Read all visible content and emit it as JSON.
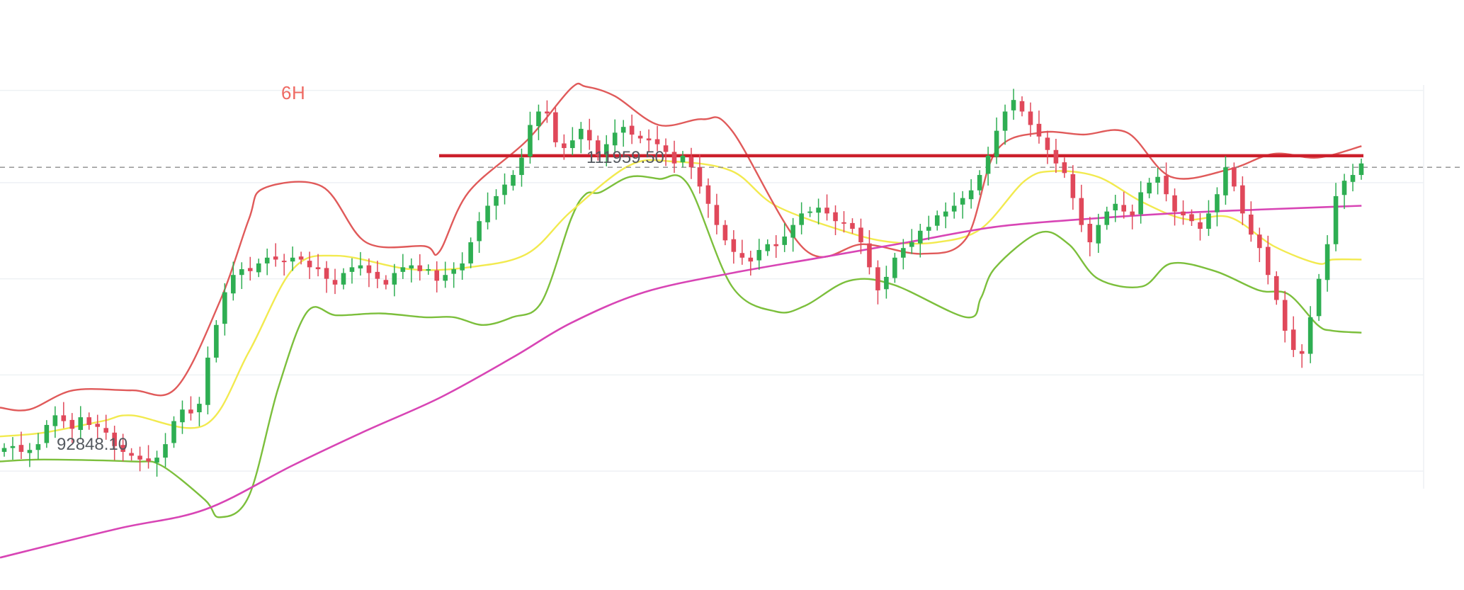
{
  "header": {
    "timeframe": "6H"
  },
  "annotations": {
    "high_label": "111959.50",
    "low_label": "92848.10"
  },
  "colors": {
    "up": "#2eae52",
    "down": "#e0485a",
    "bb_upper": "#e05a5a",
    "bb_middle": "#f2ea4f",
    "bb_lower": "#7cbf3c",
    "ma_long": "#d845b5",
    "resistance": "#cc1f2b",
    "current_price_line": "#8c8c8c",
    "timeframe_label": "#ee6a63"
  },
  "chart_data": {
    "type": "candlestick",
    "timeframe": "6H",
    "ylim": [
      87000,
      117500
    ],
    "grid": true,
    "legend": "none",
    "resistance_level": 109400,
    "current_price_line": 108800,
    "annotated_high": 111959.5,
    "annotated_low": 92848.1,
    "series": [
      {
        "role": "close",
        "values": [
          94200,
          94300,
          94000,
          94100,
          94400,
          95400,
          95900,
          95600,
          95200,
          95800,
          95400,
          95300,
          95000,
          94300,
          94000,
          93800,
          93600,
          93500,
          93700,
          94400,
          95600,
          96200,
          96000,
          96500,
          98900,
          100600,
          102300,
          103200,
          103500,
          103400,
          103800,
          104100,
          104000,
          103900,
          104100,
          104000,
          103600,
          103500,
          103000,
          102700,
          103300,
          103600,
          103700,
          103300,
          103000,
          102700,
          103300,
          103600,
          103700,
          103400,
          103500,
          102900,
          103200,
          103500,
          103800,
          104900,
          106000,
          106800,
          107300,
          107900,
          108400,
          109300,
          111000,
          111700,
          111600,
          110100,
          109800,
          110200,
          110800,
          110200,
          109400,
          110000,
          110600,
          110900,
          110500,
          110300,
          110200,
          110000,
          109600,
          109000,
          109400,
          108800,
          107800,
          106900,
          105800,
          105000,
          104400,
          104100,
          103900,
          104500,
          104800,
          104700,
          105200,
          105800,
          106400,
          106500,
          106700,
          106400,
          106000,
          105900,
          105600,
          104900,
          103600,
          102400,
          103100,
          104100,
          104600,
          104900,
          105500,
          105700,
          106300,
          106500,
          106800,
          107200,
          107600,
          108400,
          109400,
          110700,
          111700,
          112300,
          111700,
          111000,
          110400,
          109700,
          109000,
          108500,
          107200,
          105800,
          104900,
          105800,
          106500,
          106900,
          106500,
          106300,
          107500,
          108000,
          108300,
          107400,
          106500,
          106300,
          106000,
          105600,
          106400,
          107400,
          108800,
          107800,
          106400,
          105300,
          104600,
          103200,
          101900,
          100300,
          99300,
          99100,
          101000,
          103000,
          104800,
          107300,
          108100,
          108400,
          109000
        ]
      },
      {
        "role": "bb_upper",
        "x": [
          0,
          0.02,
          0.05,
          0.09,
          0.12,
          0.15,
          0.17,
          0.18,
          0.22,
          0.25,
          0.29,
          0.3,
          0.32,
          0.36,
          0.39,
          0.4,
          0.42,
          0.45,
          0.48,
          0.5,
          0.55,
          0.59,
          0.63,
          0.66,
          0.68,
          0.71,
          0.74,
          0.77,
          0.8,
          0.84,
          0.87,
          0.9,
          0.93
        ],
        "values": [
          96300,
          96200,
          97200,
          97200,
          97300,
          101800,
          106100,
          107700,
          107800,
          104900,
          104700,
          104400,
          107500,
          110200,
          112900,
          113000,
          112500,
          111000,
          111300,
          110700,
          104500,
          104800,
          104300,
          105100,
          109600,
          110600,
          110500,
          110600,
          108300,
          108700,
          109500,
          109300,
          109900
        ]
      },
      {
        "role": "bb_middle",
        "x": [
          0,
          0.03,
          0.07,
          0.09,
          0.14,
          0.17,
          0.2,
          0.23,
          0.28,
          0.32,
          0.36,
          0.39,
          0.43,
          0.46,
          0.5,
          0.53,
          0.58,
          0.61,
          0.64,
          0.67,
          0.7,
          0.72,
          0.75,
          0.78,
          0.81,
          0.84,
          0.87,
          0.9,
          0.91,
          0.93
        ],
        "values": [
          94800,
          95000,
          95600,
          95900,
          95400,
          99200,
          103500,
          104200,
          103500,
          103600,
          104300,
          106500,
          108900,
          109100,
          108600,
          106800,
          105400,
          104900,
          104900,
          105600,
          108100,
          108600,
          108300,
          107000,
          106100,
          106200,
          104700,
          103800,
          104000,
          104000
        ]
      },
      {
        "role": "bb_lower",
        "x": [
          0,
          0.03,
          0.09,
          0.11,
          0.14,
          0.15,
          0.17,
          0.19,
          0.21,
          0.23,
          0.26,
          0.29,
          0.31,
          0.33,
          0.35,
          0.37,
          0.39,
          0.4,
          0.41,
          0.43,
          0.45,
          0.47,
          0.5,
          0.53,
          0.55,
          0.58,
          0.61,
          0.66,
          0.67,
          0.68,
          0.71,
          0.73,
          0.75,
          0.78,
          0.8,
          0.83,
          0.86,
          0.88,
          0.9,
          0.91,
          0.93
        ],
        "values": [
          93500,
          93600,
          93500,
          93300,
          91500,
          90600,
          91700,
          97300,
          101300,
          101100,
          101200,
          101000,
          101000,
          100600,
          101000,
          101800,
          106100,
          107400,
          107500,
          108300,
          108200,
          107900,
          102600,
          101300,
          101600,
          102900,
          102700,
          101000,
          102000,
          103600,
          105400,
          104800,
          103000,
          102600,
          103800,
          103400,
          102400,
          102200,
          100600,
          100300,
          100200
        ]
      },
      {
        "role": "ma_long",
        "x": [
          0,
          0.08,
          0.14,
          0.2,
          0.25,
          0.3,
          0.35,
          0.39,
          0.44,
          0.5,
          0.56,
          0.62,
          0.68,
          0.74,
          0.8,
          0.86,
          0.93
        ],
        "values": [
          88500,
          90000,
          91000,
          93300,
          95100,
          96800,
          98900,
          100700,
          102300,
          103300,
          104100,
          104900,
          105700,
          106100,
          106400,
          106600,
          106800
        ]
      }
    ]
  }
}
